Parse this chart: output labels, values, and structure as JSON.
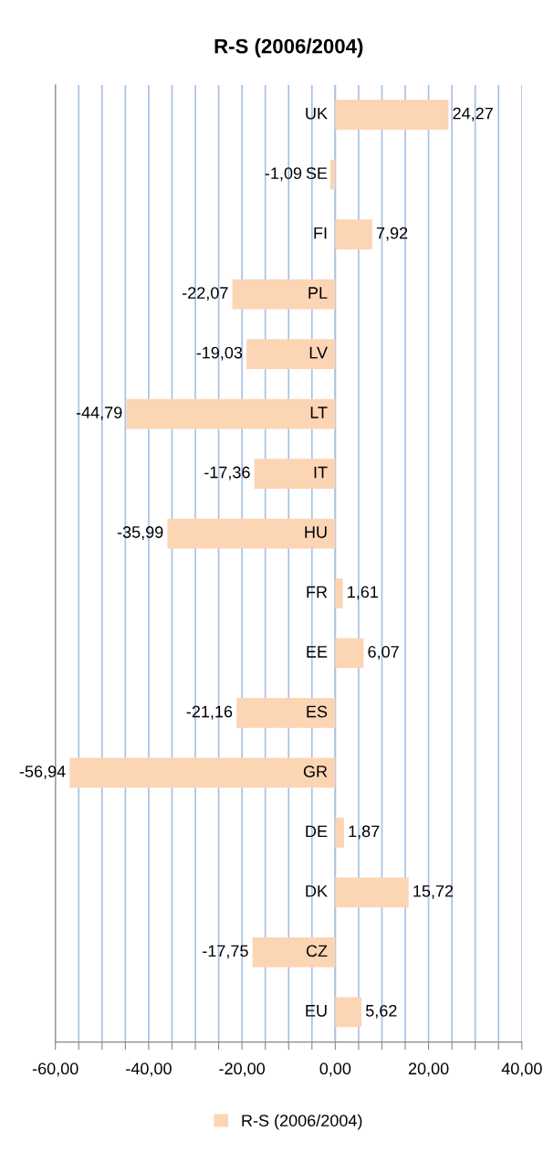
{
  "chart_data": {
    "type": "bar",
    "orientation": "horizontal",
    "title": "R-S (2006/2004)",
    "categories": [
      "UK",
      "SE",
      "FI",
      "PL",
      "LV",
      "LT",
      "IT",
      "HU",
      "FR",
      "EE",
      "ES",
      "GR",
      "DE",
      "DK",
      "CZ",
      "EU"
    ],
    "series": [
      {
        "name": "R-S (2006/2004)",
        "color": "#fcd5b5",
        "values": [
          24.27,
          -1.09,
          7.92,
          -22.07,
          -19.03,
          -44.79,
          -17.36,
          -35.99,
          1.61,
          6.07,
          -21.16,
          -56.94,
          1.87,
          15.72,
          -17.75,
          5.62
        ],
        "value_labels": [
          "24,27",
          "-1,09",
          "7,92",
          "-22,07",
          "-19,03",
          "-44,79",
          "-17,36",
          "-35,99",
          "1,61",
          "6,07",
          "-21,16",
          "-56,94",
          "1,87",
          "15,72",
          "-17,75",
          "5,62"
        ]
      }
    ],
    "xlim": [
      -60,
      40
    ],
    "xticks": [
      {
        "value": -60,
        "label": "-60,00"
      },
      {
        "value": -55,
        "label": null
      },
      {
        "value": -50,
        "label": null
      },
      {
        "value": -45,
        "label": null
      },
      {
        "value": -40,
        "label": "-40,00"
      },
      {
        "value": -35,
        "label": null
      },
      {
        "value": -30,
        "label": null
      },
      {
        "value": -25,
        "label": null
      },
      {
        "value": -20,
        "label": "-20,00"
      },
      {
        "value": -15,
        "label": null
      },
      {
        "value": -10,
        "label": null
      },
      {
        "value": -5,
        "label": null
      },
      {
        "value": 0,
        "label": "0,00"
      },
      {
        "value": 5,
        "label": null
      },
      {
        "value": 10,
        "label": null
      },
      {
        "value": 15,
        "label": null
      },
      {
        "value": 20,
        "label": "20,00"
      },
      {
        "value": 25,
        "label": null
      },
      {
        "value": 30,
        "label": null
      },
      {
        "value": 35,
        "label": null
      },
      {
        "value": 40,
        "label": "40,00"
      }
    ],
    "grid": "x",
    "legend": "bottom"
  }
}
